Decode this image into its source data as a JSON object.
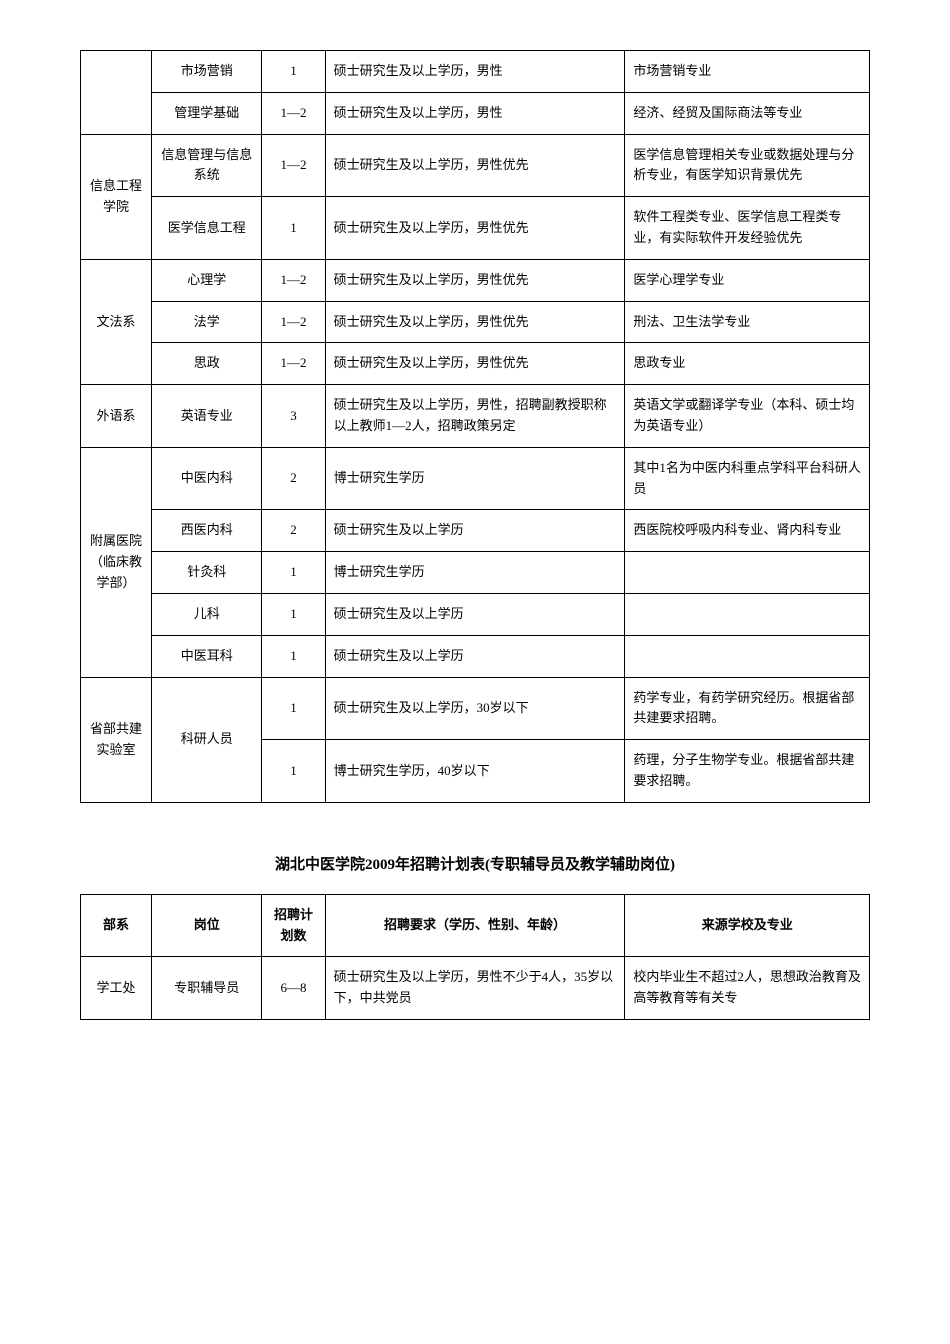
{
  "table1": {
    "rows": [
      {
        "dept": "",
        "deptRowspan": 0,
        "position": "市场营销",
        "count": "1",
        "requirement": "硕士研究生及以上学历，男性",
        "source": "市场营销专业"
      },
      {
        "dept": "",
        "deptRowspan": 0,
        "position": "管理学基础",
        "count": "1—2",
        "requirement": "硕士研究生及以上学历，男性",
        "source": "经济、经贸及国际商法等专业"
      },
      {
        "dept": "信息工程学院",
        "deptRowspan": 2,
        "position": "信息管理与信息系统",
        "count": "1—2",
        "requirement": "硕士研究生及以上学历，男性优先",
        "source": "医学信息管理相关专业或数据处理与分析专业，有医学知识背景优先"
      },
      {
        "dept": "",
        "deptRowspan": 0,
        "position": "医学信息工程",
        "count": "1",
        "requirement": "硕士研究生及以上学历，男性优先",
        "source": "软件工程类专业、医学信息工程类专业，有实际软件开发经验优先"
      },
      {
        "dept": "文法系",
        "deptRowspan": 3,
        "position": "心理学",
        "count": "1—2",
        "requirement": "硕士研究生及以上学历，男性优先",
        "source": "医学心理学专业"
      },
      {
        "dept": "",
        "deptRowspan": 0,
        "position": "法学",
        "count": "1—2",
        "requirement": "硕士研究生及以上学历，男性优先",
        "source": "刑法、卫生法学专业"
      },
      {
        "dept": "",
        "deptRowspan": 0,
        "position": "思政",
        "count": "1—2",
        "requirement": "硕士研究生及以上学历，男性优先",
        "source": "思政专业"
      },
      {
        "dept": "外语系",
        "deptRowspan": 1,
        "position": "英语专业",
        "count": "3",
        "requirement": "硕士研究生及以上学历，男性，招聘副教授职称以上教师1—2人，招聘政策另定",
        "source": "英语文学或翻译学专业（本科、硕士均为英语专业）"
      },
      {
        "dept": "附属医院（临床教学部）",
        "deptRowspan": 5,
        "position": "中医内科",
        "count": "2",
        "requirement": "博士研究生学历",
        "source": "其中1名为中医内科重点学科平台科研人员"
      },
      {
        "dept": "",
        "deptRowspan": 0,
        "position": "西医内科",
        "count": "2",
        "requirement": "硕士研究生及以上学历",
        "source": "西医院校呼吸内科专业、肾内科专业"
      },
      {
        "dept": "",
        "deptRowspan": 0,
        "position": "针灸科",
        "count": "1",
        "requirement": "博士研究生学历",
        "source": ""
      },
      {
        "dept": "",
        "deptRowspan": 0,
        "position": "儿科",
        "count": "1",
        "requirement": "硕士研究生及以上学历",
        "source": ""
      },
      {
        "dept": "",
        "deptRowspan": 0,
        "position": "中医耳科",
        "count": "1",
        "requirement": "硕士研究生及以上学历",
        "source": ""
      },
      {
        "dept": "省部共建实验室",
        "deptRowspan": 2,
        "position": "科研人员",
        "posRowspan": 2,
        "count": "1",
        "requirement": "硕士研究生及以上学历，30岁以下",
        "source": "药学专业，有药学研究经历。根据省部共建要求招聘。"
      },
      {
        "dept": "",
        "deptRowspan": 0,
        "position": "",
        "posRowspan": 0,
        "count": "1",
        "requirement": "博士研究生学历，40岁以下",
        "source": "药理，分子生物学专业。根据省部共建要求招聘。"
      }
    ]
  },
  "sectionTitle": "湖北中医学院2009年招聘计划表(专职辅导员及教学辅助岗位)",
  "table2": {
    "headers": {
      "dept": "部系",
      "position": "岗位",
      "count": "招聘计划数",
      "requirement": "招聘要求（学历、性别、年龄）",
      "source": "来源学校及专业"
    },
    "rows": [
      {
        "dept": "学工处",
        "position": "专职辅导员",
        "count": "6—8",
        "requirement": "硕士研究生及以上学历，男性不少于4人，35岁以下，中共党员",
        "source": "校内毕业生不超过2人，思想政治教育及高等教育等有关专"
      }
    ]
  }
}
